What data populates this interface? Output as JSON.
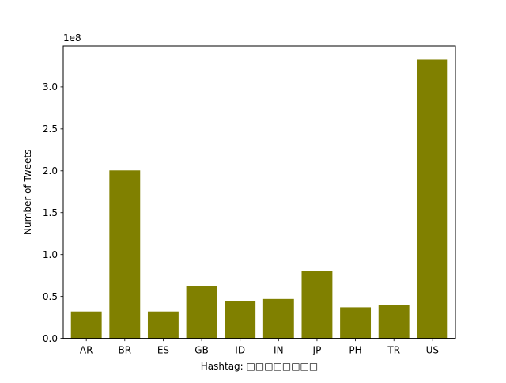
{
  "colors": {
    "bar": "#808000",
    "axis": "#000000",
    "background": "#ffffff"
  },
  "chart_data": {
    "type": "bar",
    "title": "",
    "xlabel": "Hashtag: □□□□□□□□",
    "ylabel": "Number of Tweets",
    "offset_label": "1e8",
    "categories": [
      "AR",
      "BR",
      "ES",
      "GB",
      "ID",
      "IN",
      "JP",
      "PH",
      "TR",
      "US"
    ],
    "values": [
      32000000,
      200500000,
      32000000,
      62000000,
      44500000,
      47000000,
      80500000,
      37000000,
      39500000,
      332500000
    ],
    "ylim": [
      0,
      349000000
    ],
    "yticks": [
      0,
      50000000,
      100000000,
      150000000,
      200000000,
      250000000,
      300000000
    ],
    "ytick_labels": [
      "0.0",
      "0.5",
      "1.0",
      "1.5",
      "2.0",
      "2.5",
      "3.0"
    ],
    "grid": false,
    "legend": null
  }
}
